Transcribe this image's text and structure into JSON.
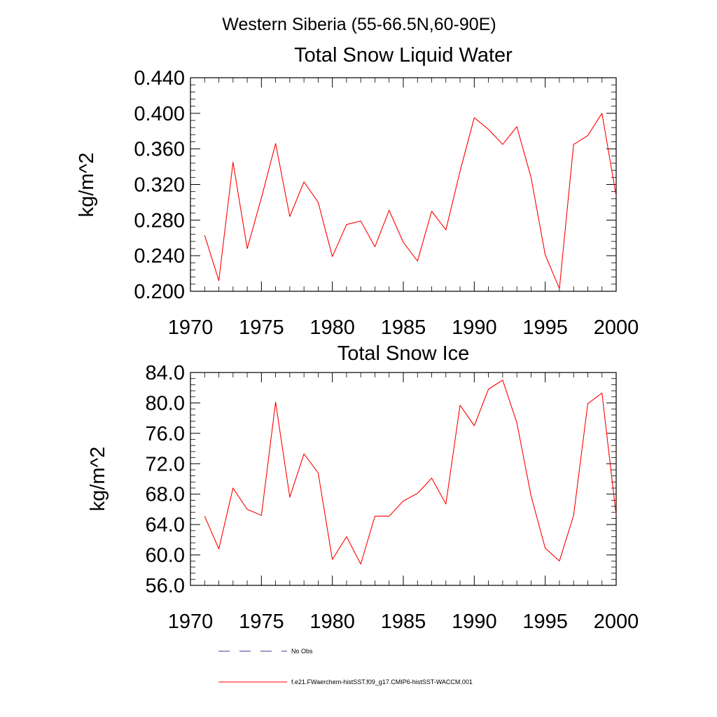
{
  "figure": {
    "title": "Western Siberia (55-66.5N,60-90E)"
  },
  "legend": [
    {
      "label": "No Obs",
      "style": "dashed",
      "color": "#3a3a8c"
    },
    {
      "label": "f.e21.FWaerchem-histSST.f09_g17.CMIP6-histSST-WACCM.001",
      "style": "solid",
      "color": "#ff0000"
    }
  ],
  "chart_data": [
    {
      "type": "line",
      "title": "Total Snow Liquid Water",
      "xlabel": "",
      "ylabel": "kg/m^2",
      "xlim": [
        1970,
        2000
      ],
      "ylim": [
        0.2,
        0.44
      ],
      "xticks": [
        "1970",
        "1975",
        "1980",
        "1985",
        "1990",
        "1995",
        "2000"
      ],
      "yticks": [
        "0.200",
        "0.240",
        "0.280",
        "0.320",
        "0.360",
        "0.400",
        "0.440"
      ],
      "series": [
        {
          "color": "#ff0000",
          "x": [
            1971,
            1972,
            1973,
            1974,
            1975,
            1976,
            1977,
            1978,
            1979,
            1980,
            1981,
            1982,
            1983,
            1984,
            1985,
            1986,
            1987,
            1988,
            1989,
            1990,
            1991,
            1992,
            1993,
            1994,
            1995,
            1996,
            1997,
            1998,
            1999,
            2000
          ],
          "values": [
            0.263,
            0.212,
            0.345,
            0.248,
            0.305,
            0.366,
            0.284,
            0.323,
            0.3,
            0.239,
            0.275,
            0.279,
            0.25,
            0.291,
            0.255,
            0.234,
            0.29,
            0.269,
            0.335,
            0.395,
            0.382,
            0.365,
            0.385,
            0.328,
            0.241,
            0.203,
            0.365,
            0.375,
            0.4,
            0.307
          ]
        }
      ]
    },
    {
      "type": "line",
      "title": "Total Snow Ice",
      "xlabel": "",
      "ylabel": "kg/m^2",
      "xlim": [
        1970,
        2000
      ],
      "ylim": [
        56.0,
        84.0
      ],
      "xticks": [
        "1970",
        "1975",
        "1980",
        "1985",
        "1990",
        "1995",
        "2000"
      ],
      "yticks": [
        "56.0",
        "60.0",
        "64.0",
        "68.0",
        "72.0",
        "76.0",
        "80.0",
        "84.0"
      ],
      "series": [
        {
          "color": "#ff0000",
          "x": [
            1971,
            1972,
            1973,
            1974,
            1975,
            1976,
            1977,
            1978,
            1979,
            1980,
            1981,
            1982,
            1983,
            1984,
            1985,
            1986,
            1987,
            1988,
            1989,
            1990,
            1991,
            1992,
            1993,
            1994,
            1995,
            1996,
            1997,
            1998,
            1999,
            2000
          ],
          "values": [
            65.1,
            60.8,
            68.8,
            66.0,
            65.2,
            80.1,
            67.6,
            73.3,
            70.8,
            59.4,
            62.4,
            58.8,
            65.1,
            65.1,
            67.1,
            68.1,
            70.1,
            66.7,
            79.7,
            77.0,
            81.8,
            83.0,
            77.4,
            67.8,
            60.9,
            59.2,
            65.2,
            79.9,
            81.3,
            65.2
          ]
        }
      ]
    }
  ]
}
